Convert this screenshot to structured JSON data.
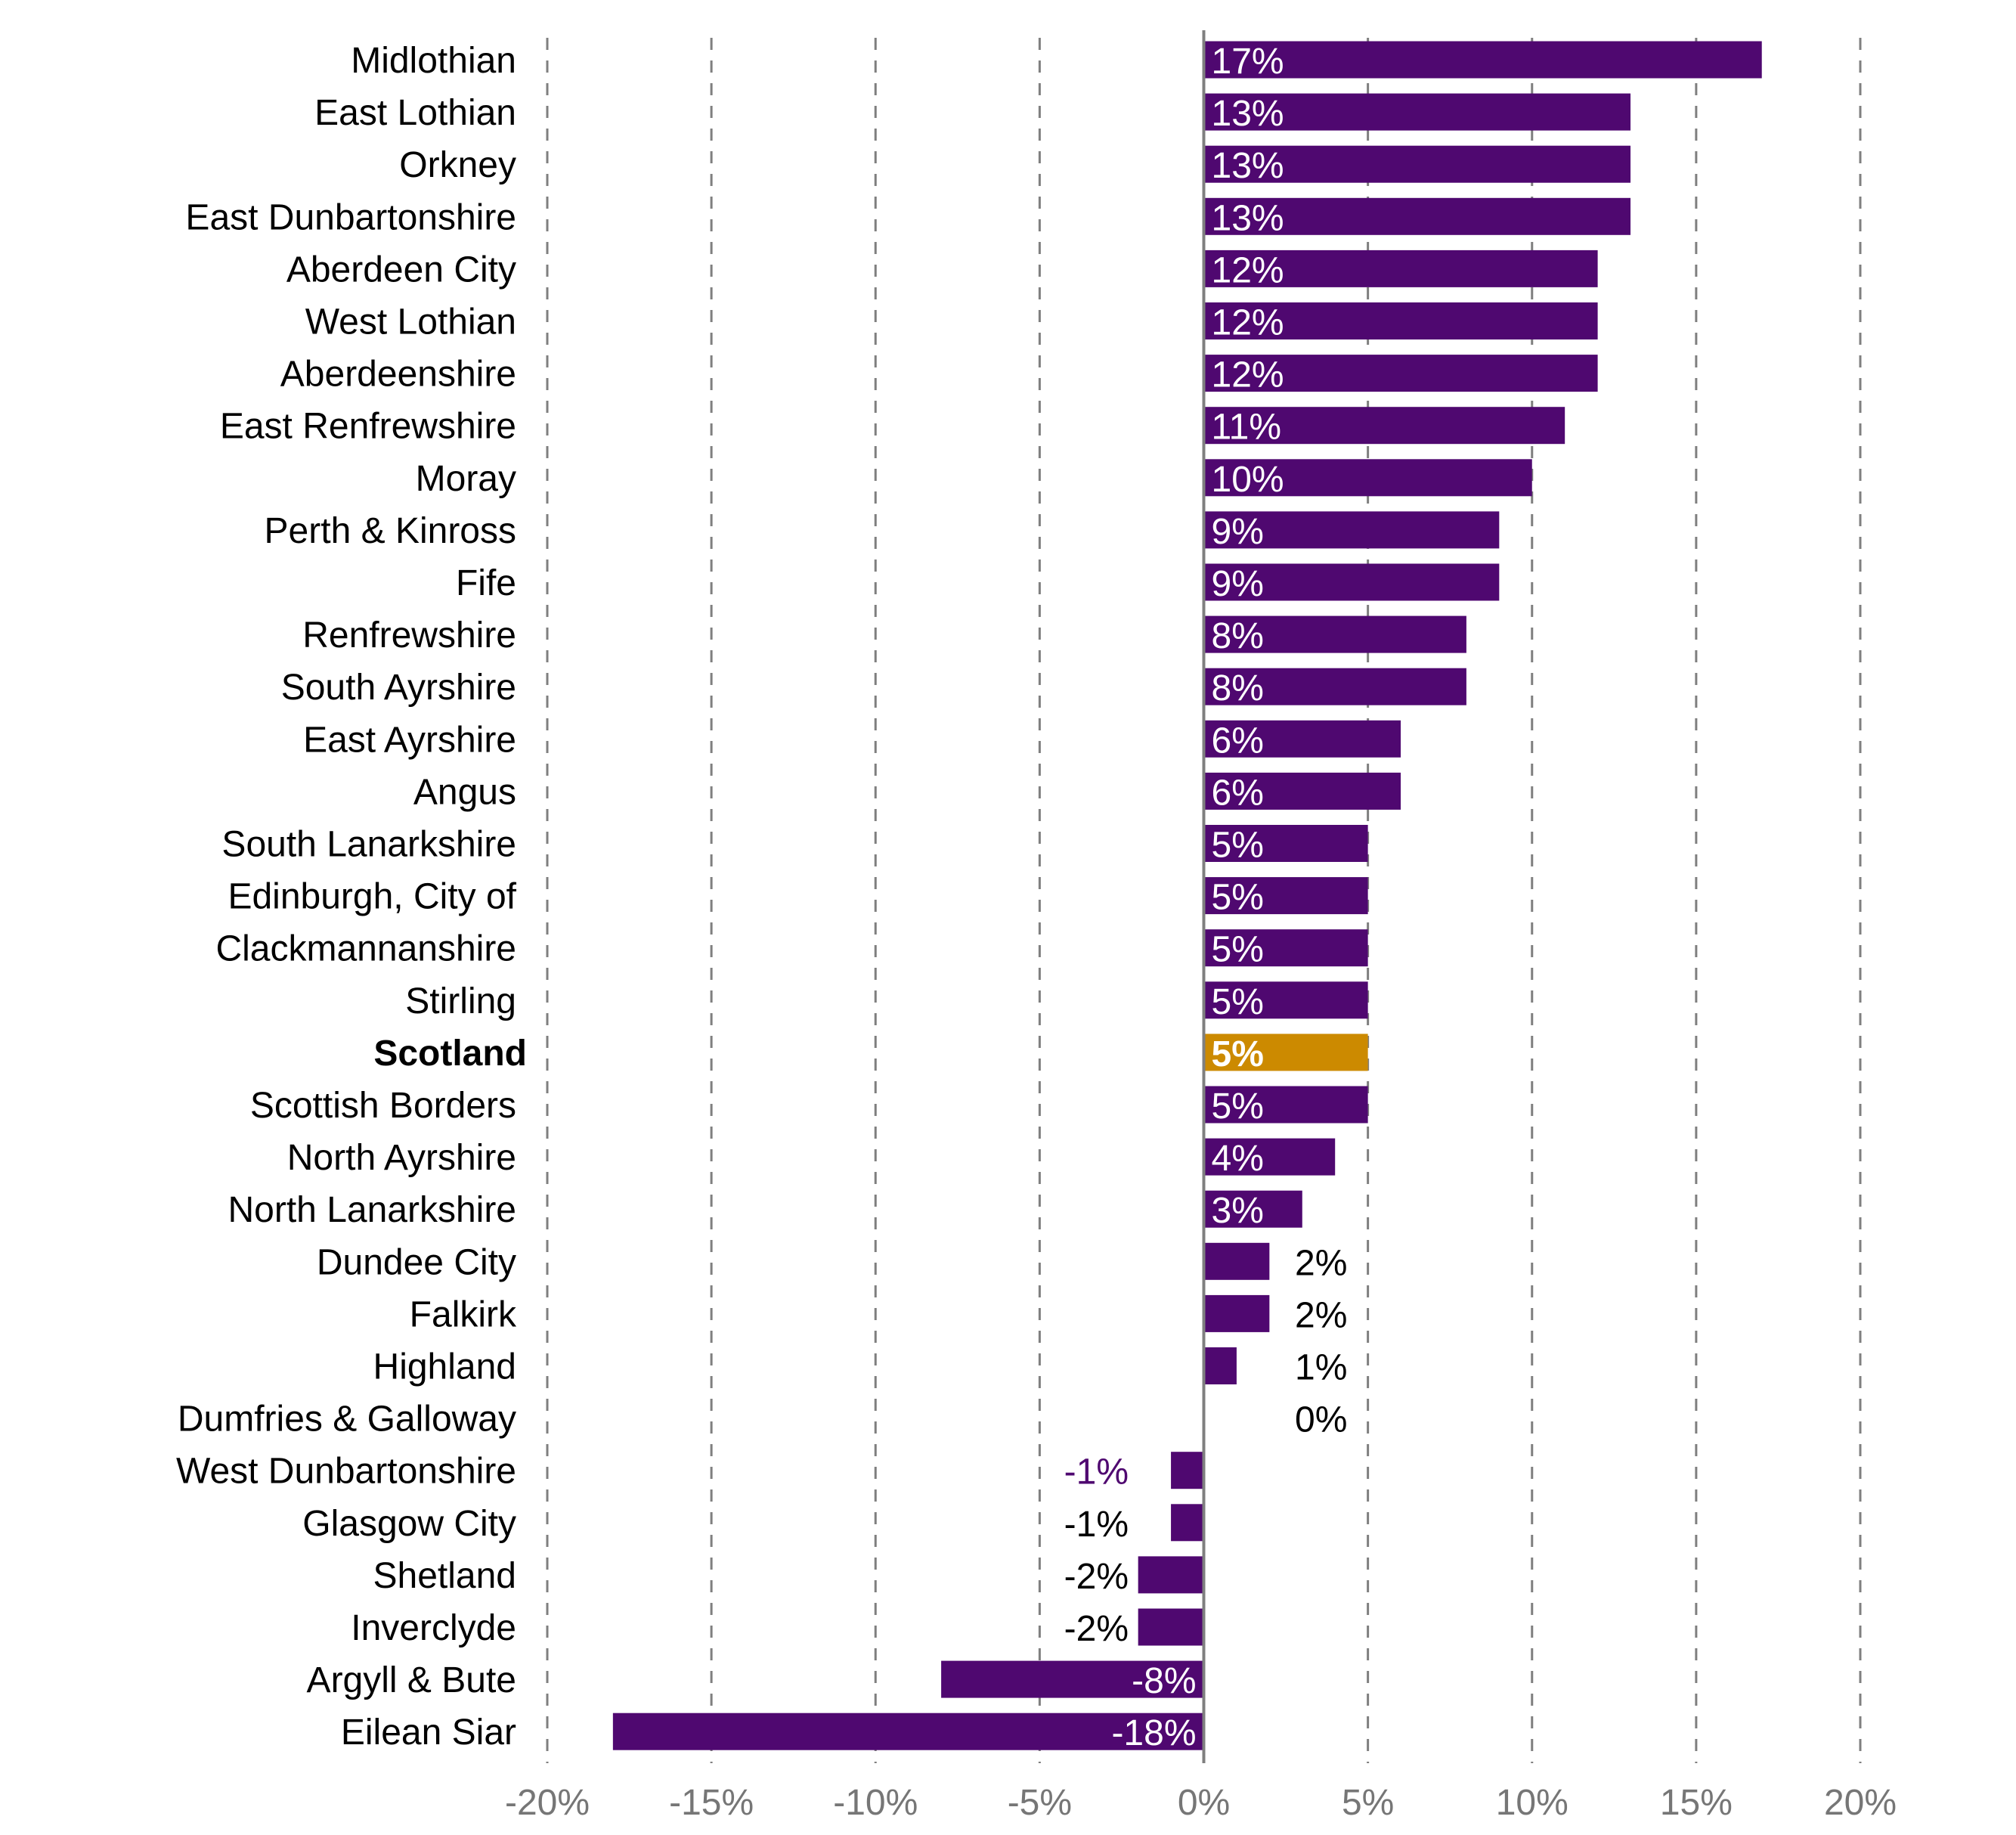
{
  "chart_data": {
    "type": "bar",
    "orientation": "horizontal",
    "title": "",
    "xlabel": "",
    "ylabel": "",
    "xlim": [
      -20,
      20
    ],
    "x_ticks": [
      -20,
      -15,
      -10,
      -5,
      0,
      5,
      10,
      15,
      20
    ],
    "x_tick_labels": [
      "-20%",
      "-15%",
      "-10%",
      "-5%",
      "0%",
      "5%",
      "10%",
      "15%",
      "20%"
    ],
    "grid": "vertical dashed",
    "colors": {
      "bar": "#4f0870",
      "highlight": "#cc8a00",
      "grid": "#7f7f7f",
      "tick_label": "#767676"
    },
    "highlight_category": "Scotland",
    "categories": [
      "Midlothian",
      "East Lothian",
      "Orkney",
      "East Dunbartonshire",
      "Aberdeen City",
      "West Lothian",
      "Aberdeenshire",
      "East Renfrewshire",
      "Moray",
      "Perth & Kinross",
      "Fife",
      "Renfrewshire",
      "South Ayrshire",
      "East Ayrshire",
      "Angus",
      "South Lanarkshire",
      "Edinburgh, City of",
      "Clackmannanshire",
      "Stirling",
      "Scotland",
      "Scottish Borders",
      "North Ayrshire",
      "North Lanarkshire",
      "Dundee City",
      "Falkirk",
      "Highland",
      "Dumfries & Galloway",
      "West Dunbartonshire",
      "Glasgow City",
      "Shetland",
      "Inverclyde",
      "Argyll & Bute",
      "Eilean Siar"
    ],
    "values": [
      17,
      13,
      13,
      13,
      12,
      12,
      12,
      11,
      10,
      9,
      9,
      8,
      8,
      6,
      6,
      5,
      5,
      5,
      5,
      5,
      5,
      4,
      3,
      2,
      2,
      1,
      0,
      -1,
      -1,
      -2,
      -2,
      -8,
      -18
    ],
    "data_labels": [
      "17%",
      "13%",
      "13%",
      "13%",
      "12%",
      "12%",
      "12%",
      "11%",
      "10%",
      "9%",
      "9%",
      "8%",
      "8%",
      "6%",
      "6%",
      "5%",
      "5%",
      "5%",
      "5%",
      "5%",
      "5%",
      "4%",
      "3%",
      "2%",
      "2%",
      "1%",
      "0%",
      "-1%",
      "-1%",
      "-2%",
      "-2%",
      "-8%",
      "-18%"
    ]
  }
}
